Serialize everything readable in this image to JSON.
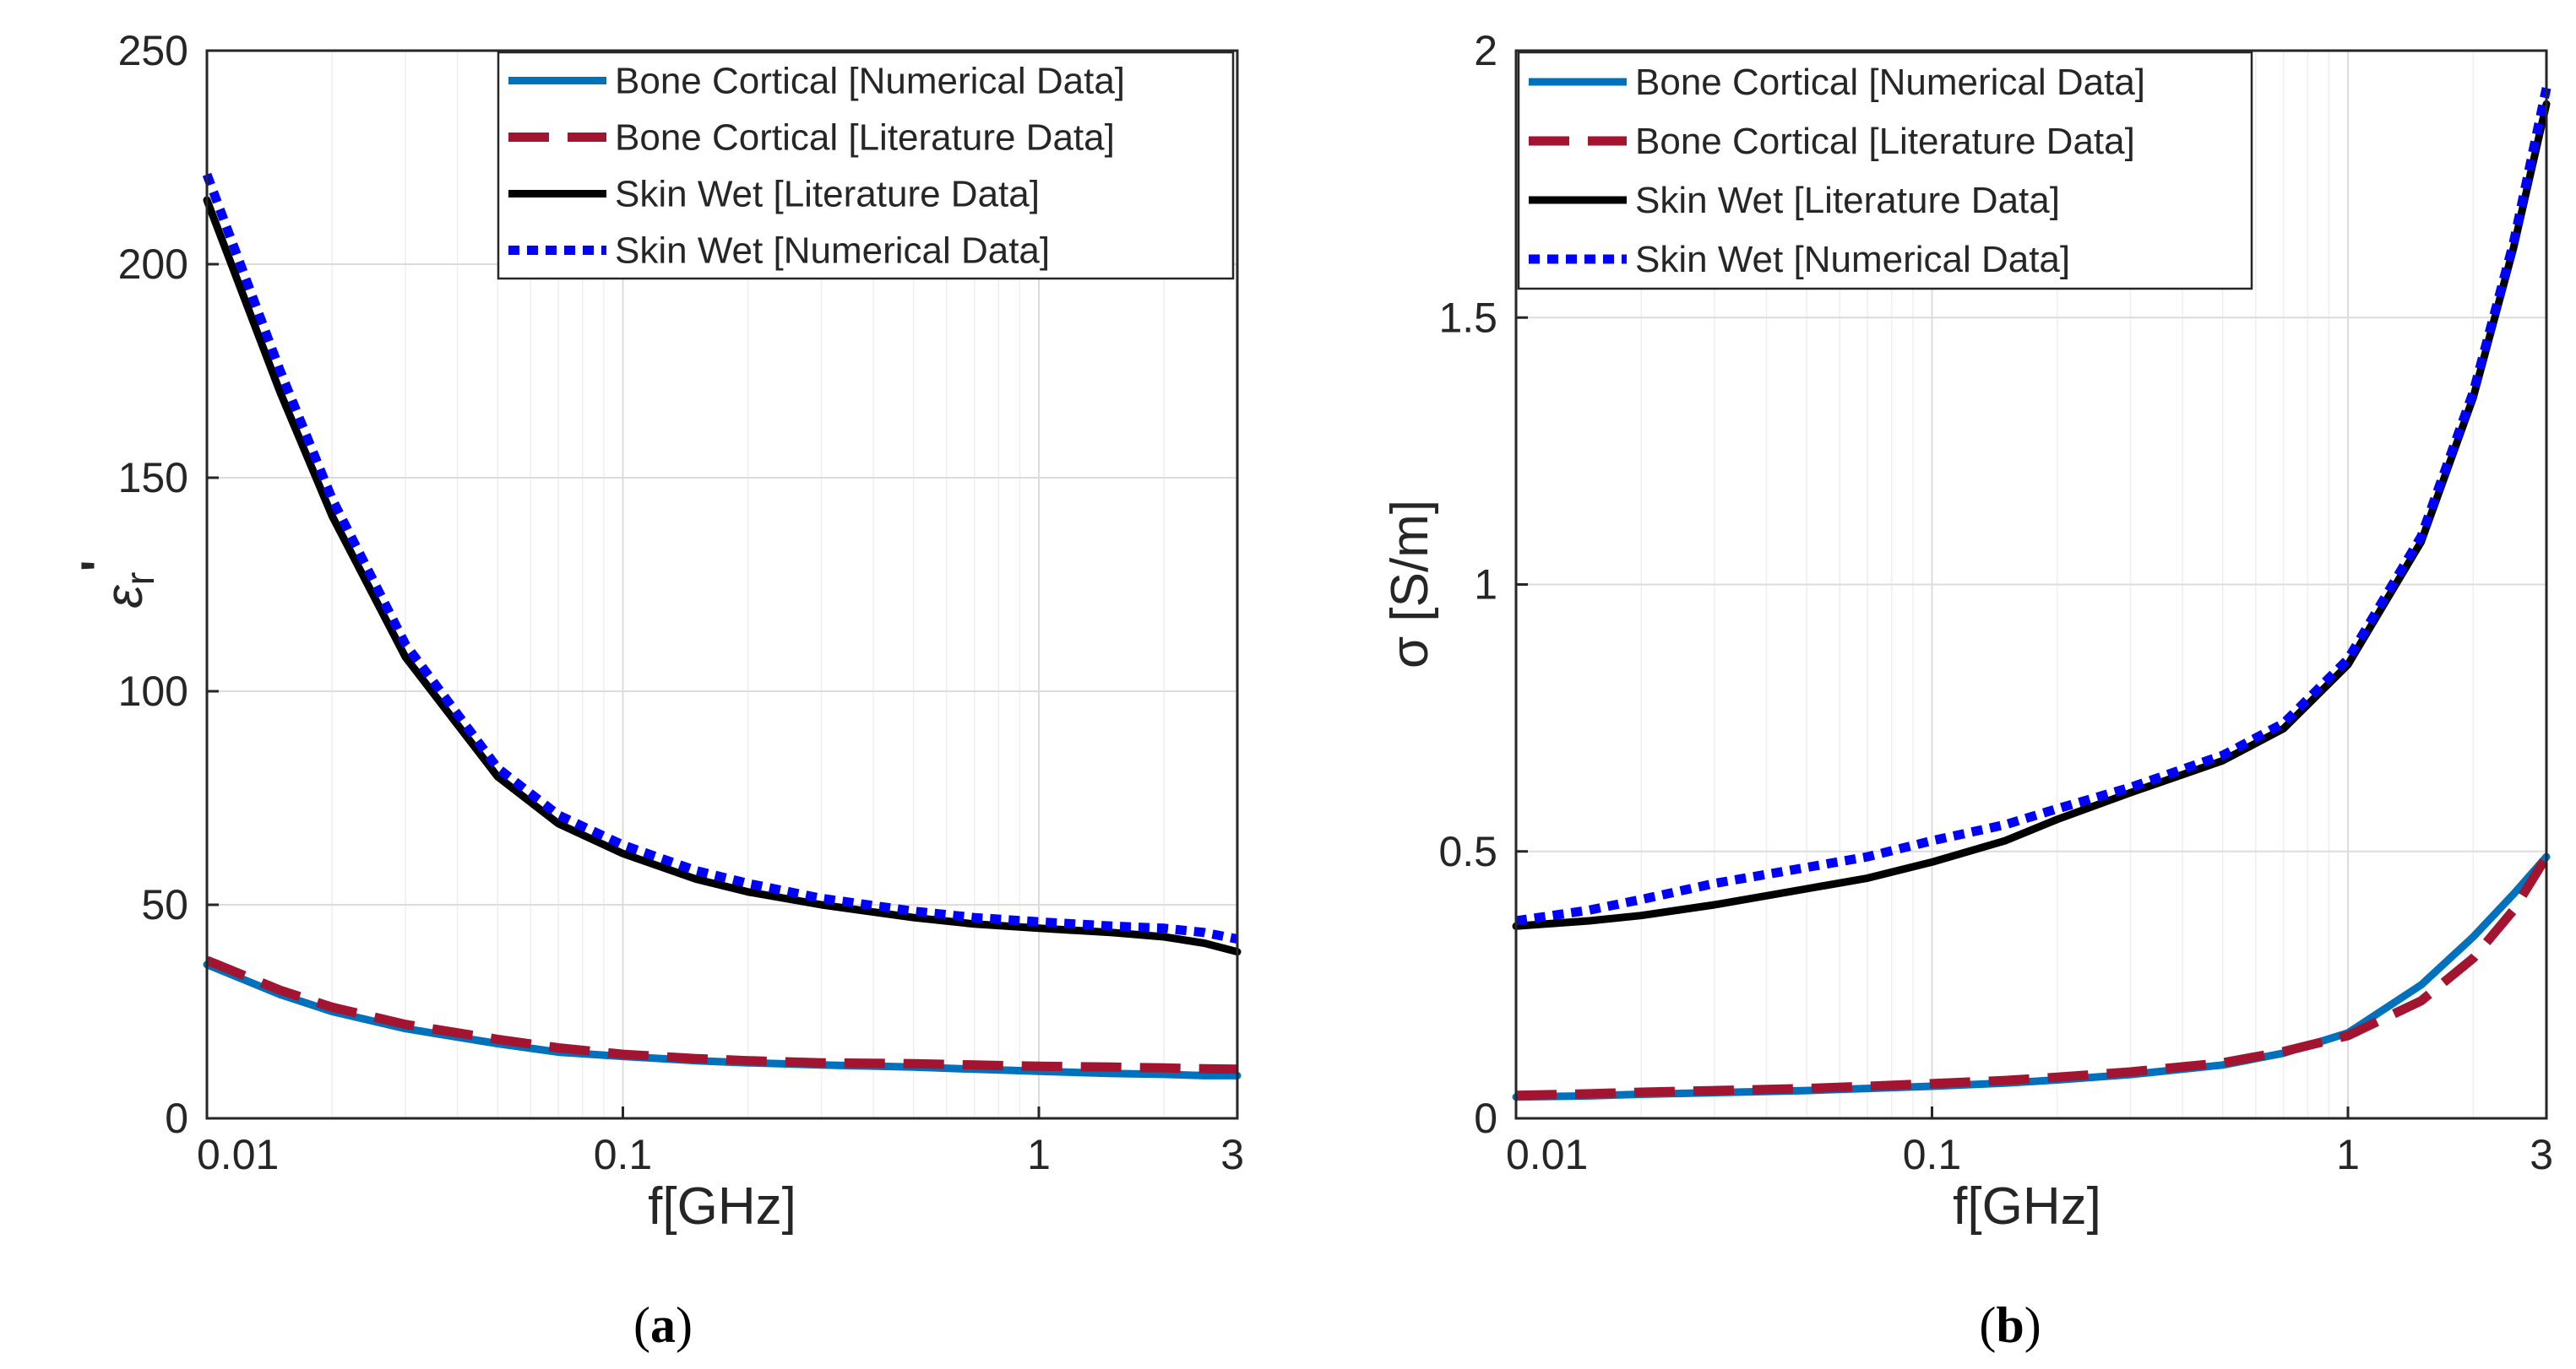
{
  "colors": {
    "bone_numerical": "#0072BD",
    "bone_literature": "#A2142F",
    "skin_literature": "#000000",
    "skin_numerical": "#0000FF",
    "grid_major": "#DCDCDC",
    "grid_minor": "#EFEFEF",
    "axis": "#262626"
  },
  "chart_data": [
    {
      "type": "line",
      "panel": "a",
      "caption_letter": "a",
      "xscale": "log",
      "xlabel": "f[GHz]",
      "ylabel_symbol": "ε",
      "ylabel_sub": "r",
      "ylabel_prime": "'",
      "xlim": [
        0.01,
        3
      ],
      "ylim": [
        0,
        250
      ],
      "xticks": [
        0.01,
        0.1,
        1,
        3
      ],
      "xtick_labels": [
        "0.01",
        "0.1",
        "1",
        "3"
      ],
      "yticks": [
        0,
        50,
        100,
        150,
        200,
        250
      ],
      "ytick_labels": [
        "0",
        "50",
        "100",
        "150",
        "200",
        "250"
      ],
      "legend_position": "top-right",
      "x": [
        0.01,
        0.015,
        0.02,
        0.03,
        0.05,
        0.07,
        0.1,
        0.15,
        0.2,
        0.3,
        0.5,
        0.7,
        1,
        1.5,
        2,
        2.5,
        3
      ],
      "series": [
        {
          "key": "bone_numerical",
          "name": "Bone Cortical [Numerical Data]",
          "style": "solid",
          "values": [
            36,
            29,
            25,
            21,
            17.5,
            15.5,
            14.5,
            13.5,
            13,
            12.5,
            12,
            11.5,
            11,
            10.5,
            10.3,
            10,
            10
          ]
        },
        {
          "key": "bone_literature",
          "name": "Bone Cortical [Literature Data]",
          "style": "dashed",
          "values": [
            37,
            30,
            26,
            22,
            18.5,
            16.5,
            15,
            14,
            13.5,
            13,
            12.8,
            12.5,
            12.2,
            12,
            11.8,
            11.6,
            11.5
          ]
        },
        {
          "key": "skin_literature",
          "name": "Skin Wet [Literature Data]",
          "style": "solid",
          "values": [
            215,
            170,
            141,
            108,
            80,
            69,
            62,
            56,
            53,
            50,
            47,
            45.5,
            44.5,
            43.5,
            42.5,
            41,
            39
          ]
        },
        {
          "key": "skin_numerical",
          "name": "Skin Wet [Numerical Data]",
          "style": "dotted",
          "values": [
            221,
            175,
            145,
            111,
            82,
            71,
            64,
            58,
            55,
            51.5,
            48.5,
            47,
            46,
            45,
            44.5,
            43.5,
            42
          ]
        }
      ]
    },
    {
      "type": "line",
      "panel": "b",
      "caption_letter": "b",
      "xscale": "log",
      "xlabel": "f[GHz]",
      "ylabel": "σ [S/m]",
      "xlim": [
        0.01,
        3
      ],
      "ylim": [
        0,
        2
      ],
      "xticks": [
        0.01,
        0.1,
        1,
        3
      ],
      "xtick_labels": [
        "0.01",
        "0.1",
        "1",
        "3"
      ],
      "yticks": [
        0,
        0.5,
        1,
        1.5,
        2
      ],
      "ytick_labels": [
        "0",
        "0.5",
        "1",
        "1.5",
        "2"
      ],
      "legend_position": "top-right",
      "x": [
        0.01,
        0.015,
        0.02,
        0.03,
        0.05,
        0.07,
        0.1,
        0.15,
        0.2,
        0.3,
        0.5,
        0.7,
        1,
        1.5,
        2,
        2.5,
        3
      ],
      "series": [
        {
          "key": "bone_numerical",
          "name": "Bone Cortical [Numerical Data]",
          "style": "solid",
          "values": [
            0.04,
            0.042,
            0.045,
            0.048,
            0.052,
            0.056,
            0.06,
            0.066,
            0.072,
            0.082,
            0.1,
            0.122,
            0.16,
            0.25,
            0.34,
            0.42,
            0.49
          ]
        },
        {
          "key": "bone_literature",
          "name": "Bone Cortical [Literature Data]",
          "style": "dashed",
          "values": [
            0.043,
            0.046,
            0.049,
            0.052,
            0.056,
            0.06,
            0.065,
            0.071,
            0.077,
            0.087,
            0.104,
            0.125,
            0.155,
            0.22,
            0.3,
            0.39,
            0.49
          ]
        },
        {
          "key": "skin_literature",
          "name": "Skin Wet [Literature Data]",
          "style": "solid",
          "values": [
            0.36,
            0.37,
            0.38,
            0.4,
            0.43,
            0.45,
            0.48,
            0.52,
            0.56,
            0.61,
            0.67,
            0.73,
            0.85,
            1.08,
            1.35,
            1.63,
            1.9
          ]
        },
        {
          "key": "skin_numerical",
          "name": "Skin Wet [Numerical Data]",
          "style": "dotted",
          "values": [
            0.37,
            0.39,
            0.41,
            0.44,
            0.47,
            0.49,
            0.52,
            0.55,
            0.58,
            0.62,
            0.68,
            0.74,
            0.86,
            1.09,
            1.36,
            1.64,
            1.93
          ]
        }
      ]
    }
  ]
}
